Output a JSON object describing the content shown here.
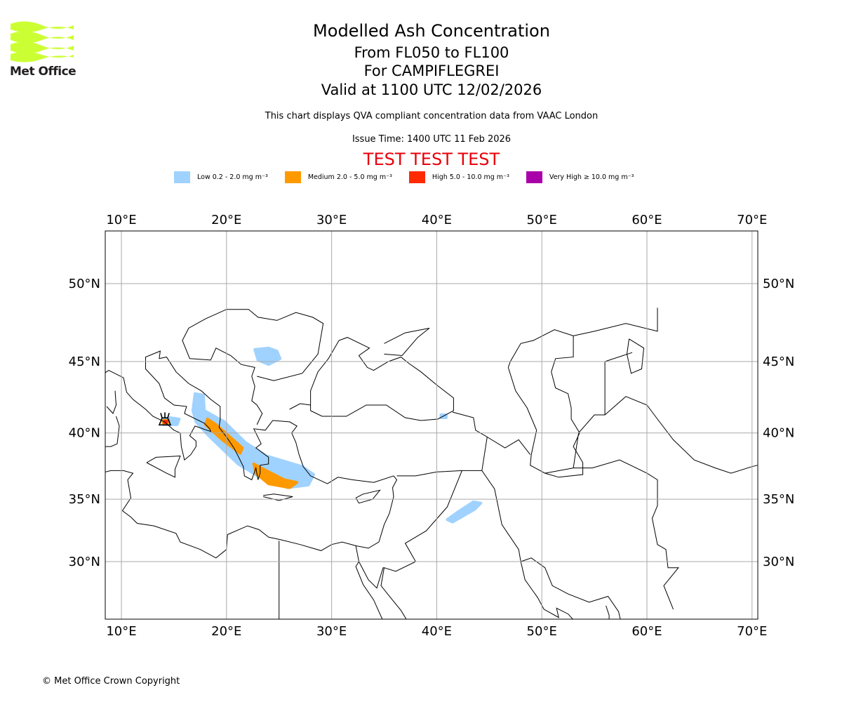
{
  "header": {
    "title": "Modelled Ash Concentration",
    "levels": "From FL050 to FL100",
    "volcano": "For CAMPIFLEGREI",
    "valid": "Valid at 1100 UTC 12/02/2026",
    "description": "This chart displays QVA compliant concentration data from VAAC London",
    "issue_time": "Issue Time: 1400 UTC 11 Feb 2026",
    "test_banner": "TEST TEST TEST"
  },
  "logo": {
    "text": "Met Office",
    "color": "#ccff33"
  },
  "legend": [
    {
      "label": "Low 0.2 - 2.0 mg m⁻³",
      "color": "#a0d2ff"
    },
    {
      "label": "Medium 2.0 - 5.0 mg m⁻³",
      "color": "#ff9900"
    },
    {
      "label": "High 5.0 - 10.0 mg m⁻³",
      "color": "#ff2a00"
    },
    {
      "label": "Very High ≥ 10.0 mg m⁻³",
      "color": "#aa00aa"
    }
  ],
  "footer": {
    "copyright": "© Met Office Crown Copyright"
  },
  "chart_data": {
    "type": "map",
    "projection": "mercator",
    "lon_range": [
      8.5,
      70.5
    ],
    "lat_range": [
      25.5,
      53.3
    ],
    "grid": true,
    "lon_ticks": [
      10,
      20,
      30,
      40,
      50,
      60,
      70
    ],
    "lon_tick_labels": [
      "10°E",
      "20°E",
      "30°E",
      "40°E",
      "50°E",
      "60°E",
      "70°E"
    ],
    "lat_ticks": [
      30,
      35,
      40,
      45,
      50
    ],
    "lat_tick_labels": [
      "30°N",
      "35°N",
      "40°N",
      "45°N",
      "50°N"
    ],
    "volcano": {
      "name": "CAMPIFLEGREI",
      "lon": 14.14,
      "lat": 40.83
    },
    "ash_regions": [
      {
        "level": "low",
        "polygon": [
          [
            17.0,
            42.8
          ],
          [
            17.8,
            42.7
          ],
          [
            17.9,
            41.6
          ],
          [
            19.8,
            40.8
          ],
          [
            21.8,
            39.3
          ],
          [
            23.8,
            38.3
          ],
          [
            27.2,
            37.5
          ],
          [
            28.3,
            36.9
          ],
          [
            27.8,
            36.1
          ],
          [
            25.8,
            35.9
          ],
          [
            23.2,
            36.7
          ],
          [
            21.1,
            37.7
          ],
          [
            18.3,
            39.8
          ],
          [
            17.1,
            40.8
          ],
          [
            16.8,
            41.6
          ]
        ]
      },
      {
        "level": "low",
        "polygon": [
          [
            13.9,
            41.0
          ],
          [
            14.6,
            41.1
          ],
          [
            15.5,
            41.0
          ],
          [
            15.3,
            40.6
          ],
          [
            14.0,
            40.6
          ]
        ]
      },
      {
        "level": "low",
        "polygon": [
          [
            22.7,
            45.8
          ],
          [
            24.0,
            45.9
          ],
          [
            24.8,
            45.7
          ],
          [
            25.1,
            45.2
          ],
          [
            24.0,
            44.8
          ],
          [
            23.0,
            45.1
          ]
        ]
      },
      {
        "level": "low",
        "polygon": [
          [
            41.0,
            33.4
          ],
          [
            42.0,
            34.0
          ],
          [
            43.5,
            34.8
          ],
          [
            44.2,
            34.7
          ],
          [
            43.6,
            34.2
          ],
          [
            41.5,
            33.2
          ]
        ]
      },
      {
        "level": "low",
        "polygon": [
          [
            40.4,
            41.3
          ],
          [
            40.9,
            41.3
          ],
          [
            40.9,
            41.1
          ],
          [
            40.4,
            41.1
          ]
        ]
      },
      {
        "level": "medium",
        "polygon": [
          [
            18.2,
            41.0
          ],
          [
            19.0,
            40.6
          ],
          [
            21.5,
            38.9
          ],
          [
            21.3,
            38.5
          ],
          [
            19.6,
            39.5
          ],
          [
            18.0,
            40.6
          ]
        ]
      },
      {
        "level": "medium",
        "polygon": [
          [
            22.6,
            37.7
          ],
          [
            23.3,
            37.4
          ],
          [
            25.5,
            36.5
          ],
          [
            26.7,
            36.3
          ],
          [
            26.0,
            35.9
          ],
          [
            24.0,
            36.2
          ],
          [
            22.8,
            37.0
          ]
        ]
      },
      {
        "level": "medium",
        "polygon": [
          [
            14.0,
            40.9
          ],
          [
            14.5,
            40.9
          ],
          [
            14.4,
            40.7
          ],
          [
            14.0,
            40.7
          ]
        ]
      },
      {
        "level": "high",
        "polygon": [
          [
            14.1,
            40.85
          ],
          [
            14.3,
            40.85
          ],
          [
            14.3,
            40.75
          ],
          [
            14.1,
            40.75
          ]
        ]
      }
    ]
  }
}
